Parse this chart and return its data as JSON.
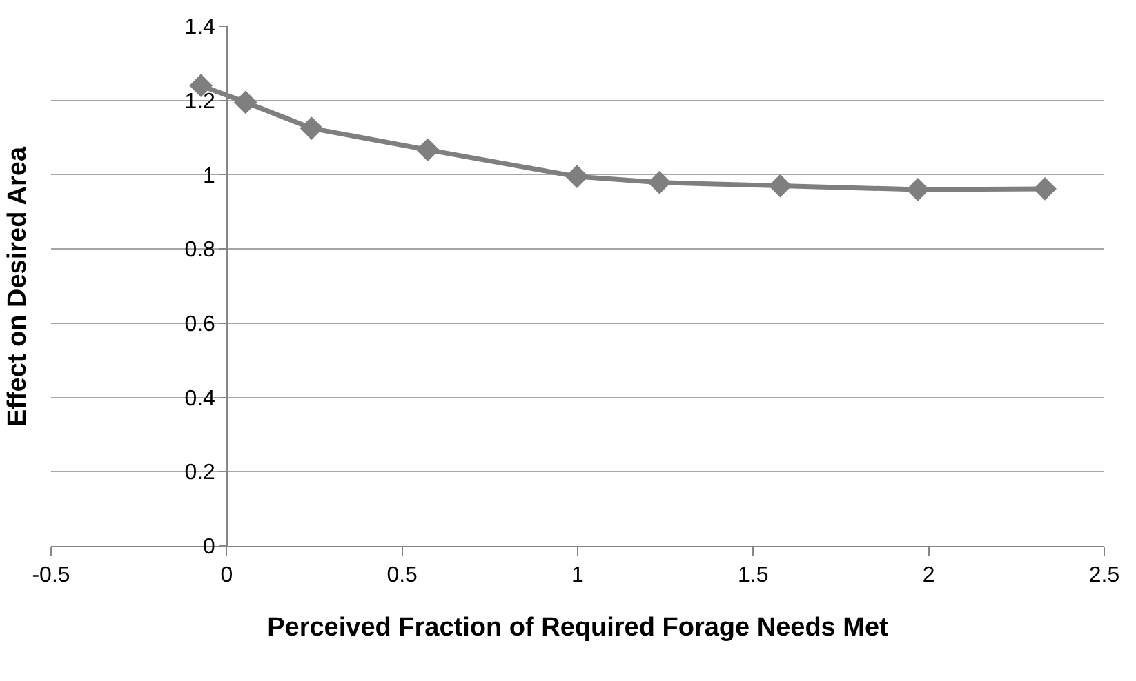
{
  "chart_data": {
    "type": "line",
    "xlabel": "Perceived Fraction of Required Forage Needs Met",
    "ylabel": "Effect on Desired Area",
    "x": [
      -0.073,
      0.054,
      0.242,
      0.573,
      0.998,
      1.233,
      1.577,
      1.969,
      2.331
    ],
    "series": [
      {
        "color": "#7f7f7f",
        "values": [
          1.24,
          1.195,
          1.125,
          1.067,
          0.995,
          0.979,
          0.97,
          0.96,
          0.962
        ]
      }
    ],
    "xlim": [
      -0.5,
      2.5
    ],
    "xticks": [
      -0.5,
      0,
      0.5,
      1,
      1.5,
      2,
      2.5
    ],
    "ylim": [
      0,
      1.4
    ],
    "yticks": [
      0,
      0.2,
      0.4,
      0.6,
      0.8,
      1,
      1.2,
      1.4
    ],
    "grid": "y",
    "marker": "diamond",
    "line_style": "solid"
  }
}
